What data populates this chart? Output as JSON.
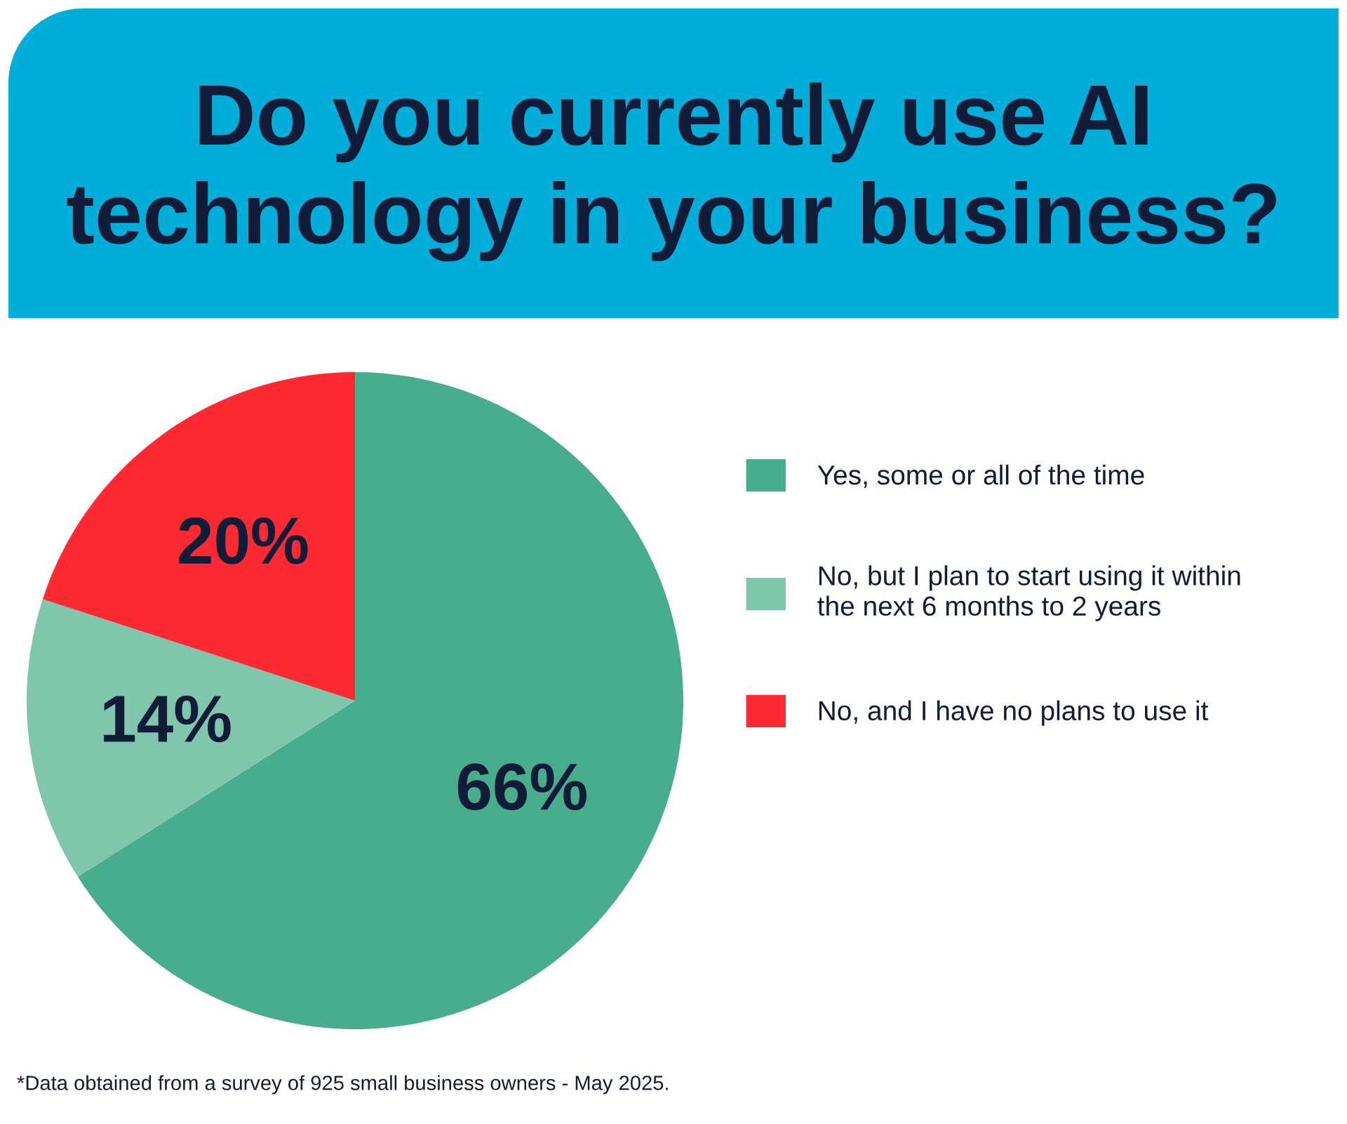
{
  "chart_data": {
    "type": "pie",
    "title": "Do you currently use AI technology in your business?",
    "categories": [
      "Yes, some or all of the time",
      "No, but I plan to start using it within the next 6 months to 2 years",
      "No, and I have no plans to use it"
    ],
    "values": [
      66,
      14,
      20
    ],
    "colors": [
      "#48ad8c",
      "#80c6ad",
      "#fe2a33"
    ],
    "value_labels": [
      "66%",
      "14%",
      "20%"
    ],
    "legend": "right",
    "annotations": [
      "*Data obtained from a survey of 925 small business owners - May 2025."
    ]
  }
}
